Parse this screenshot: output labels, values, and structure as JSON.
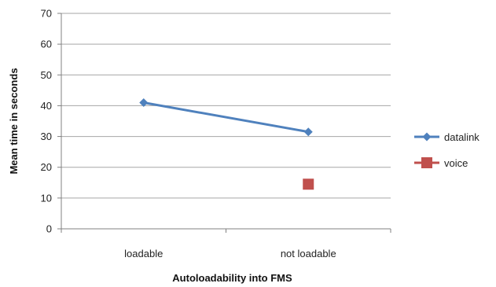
{
  "chart_data": {
    "type": "line",
    "title": "",
    "xlabel": "Autoloadability into FMS",
    "ylabel": "Mean time in seconds",
    "categories": [
      "loadable",
      "not loadable"
    ],
    "ylim": [
      0,
      70
    ],
    "yticks": [
      0,
      10,
      20,
      30,
      40,
      50,
      60,
      70
    ],
    "grid": "horizontal",
    "legend_position": "right",
    "series": [
      {
        "name": "datalink",
        "values": [
          41,
          31.5
        ],
        "color": "#4f81bd",
        "marker": "diamond",
        "line": true
      },
      {
        "name": "voice",
        "values": [
          null,
          14.5
        ],
        "color": "#c0504d",
        "marker": "square",
        "line": true
      }
    ]
  }
}
